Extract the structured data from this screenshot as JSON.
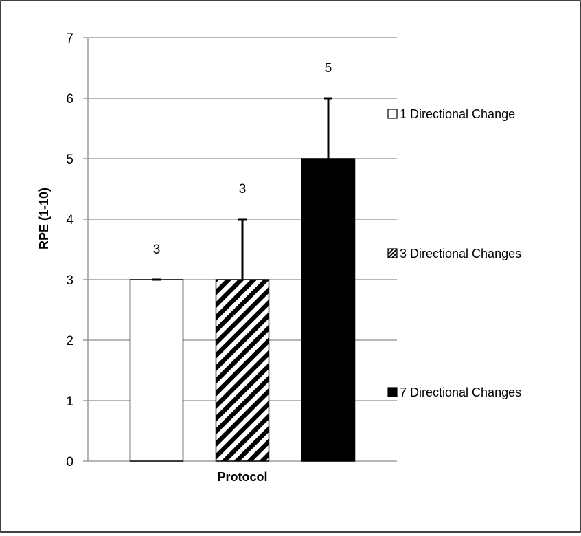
{
  "chart_data": {
    "type": "bar",
    "title": "",
    "xlabel": "Protocol",
    "ylabel": "RPE (1-10)",
    "ylim": [
      0,
      7
    ],
    "yticks": [
      "0",
      "1",
      "2",
      "3",
      "4",
      "5",
      "6",
      "7"
    ],
    "grid": true,
    "legend_position": "right",
    "series": [
      {
        "name": "1 Directional Change",
        "value": 3,
        "error": 0,
        "data_label": "3",
        "fill": "white",
        "color": "#ffffff"
      },
      {
        "name": "3 Directional Changes",
        "value": 3,
        "error": 1,
        "data_label": "3",
        "fill": "hatched",
        "color": "#000000"
      },
      {
        "name": "7 Directional Changes",
        "value": 5,
        "error": 1,
        "data_label": "5",
        "fill": "solid",
        "color": "#000000"
      }
    ]
  }
}
